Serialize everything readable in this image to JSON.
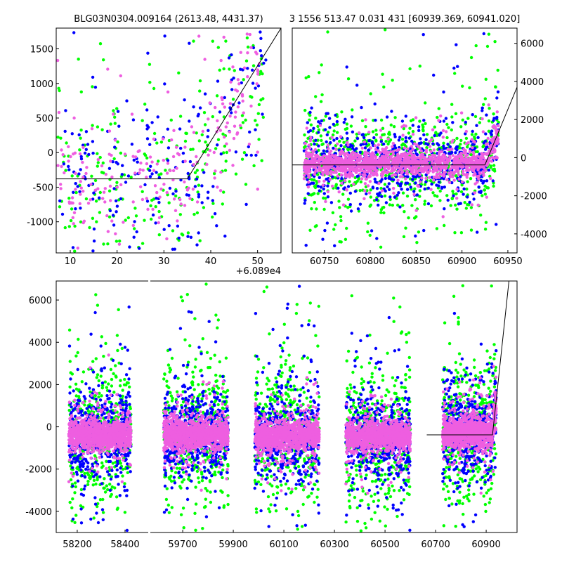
{
  "chart_data": [
    {
      "type": "scatter",
      "panel": "top-left",
      "title": "BLG03N0304.009164 (2613.48, 4431.37)",
      "x_offset_label": "+6.089e4",
      "xlim": [
        7,
        55
      ],
      "ylim": [
        -1450,
        1800
      ],
      "xticks": [
        10,
        20,
        30,
        40,
        50
      ],
      "yticks": [
        -1000,
        -500,
        0,
        500,
        1000,
        1500
      ],
      "model_line": [
        [
          7,
          -380
        ],
        [
          35,
          -380
        ],
        [
          55,
          1800
        ]
      ],
      "series": [
        {
          "name": "green",
          "color": "#00ff00",
          "count": 260,
          "spread": 650
        },
        {
          "name": "blue",
          "color": "#0000ff",
          "count": 220,
          "spread": 550
        },
        {
          "name": "pink",
          "color": "#ee5ee0",
          "count": 230,
          "spread": 450
        }
      ]
    },
    {
      "type": "scatter",
      "panel": "top-right",
      "title": "3 1556 513.47 0.031 431 [60939.369, 60941.020]",
      "xlim": [
        60715,
        60960
      ],
      "ylim": [
        -5000,
        6800
      ],
      "xticks": [
        60750,
        60800,
        60850,
        60900,
        60950
      ],
      "yticks": [
        -4000,
        -2000,
        0,
        2000,
        4000,
        6000
      ],
      "model_line": [
        [
          60715,
          -380
        ],
        [
          60925,
          -380
        ],
        [
          60960,
          3700
        ]
      ],
      "data_range": [
        60728,
        60940
      ]
    },
    {
      "type": "scatter",
      "panel": "bottom",
      "xlim_segments": [
        [
          58112,
          58497
        ],
        [
          59572,
          61022
        ]
      ],
      "ylim": [
        -5000,
        6900
      ],
      "xticks": [
        [
          58200,
          58400
        ],
        [
          59700,
          59900,
          60100,
          60300,
          60500,
          60700,
          60900
        ]
      ],
      "yticks": [
        -4000,
        -2000,
        0,
        2000,
        4000,
        6000
      ],
      "model_line": [
        [
          60665,
          -380
        ],
        [
          60925,
          -380
        ],
        [
          60990,
          6900
        ]
      ],
      "seasons": [
        {
          "start": 58165,
          "end": 58425,
          "center": -350
        },
        {
          "start": 59625,
          "end": 59880,
          "center": -350
        },
        {
          "start": 59985,
          "end": 60240,
          "center": -400
        },
        {
          "start": 60345,
          "end": 60600,
          "center": -450
        },
        {
          "start": 60728,
          "end": 60940,
          "center": -250
        }
      ],
      "series_colors": {
        "green": "#00ff00",
        "blue": "#0000ff",
        "pink": "#ee5ee0"
      }
    }
  ]
}
